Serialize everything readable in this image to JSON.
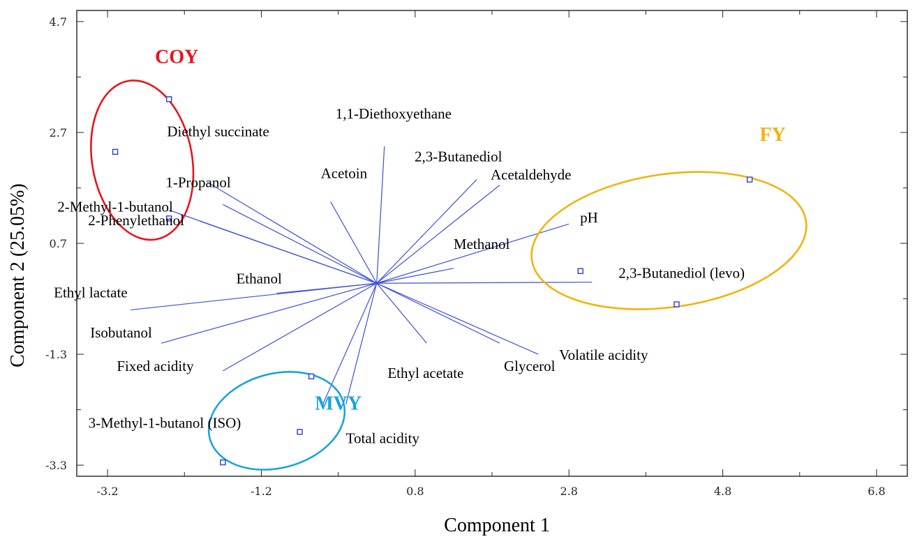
{
  "chart_data": {
    "type": "scatter",
    "subtype": "biplot",
    "xlabel": "Component 1",
    "ylabel": "Component 2 (25.05%)",
    "xlim": [
      -3.6,
      7.2
    ],
    "ylim": [
      -3.5,
      4.9
    ],
    "x_ticks": [
      "-3.2",
      "-1.2",
      "0.8",
      "2.8",
      "4.8",
      "6.8"
    ],
    "y_ticks": [
      "4.7",
      "2.7",
      "0.7",
      "-1.3",
      "-3.3"
    ],
    "grid": false,
    "origin": [
      0.3,
      -0.02
    ],
    "loadings": [
      {
        "name": "1,1-Diethoxyethane",
        "x": 0.4,
        "y": 2.45
      },
      {
        "name": "2,3-Butanediol",
        "x": 1.9,
        "y": 1.75
      },
      {
        "name": "Acetaldehyde",
        "x": 1.6,
        "y": 1.85
      },
      {
        "name": "Acetoin",
        "x": -0.3,
        "y": 1.45
      },
      {
        "name": "pH",
        "x": 2.8,
        "y": 1.05
      },
      {
        "name": "Methanol",
        "x": 1.3,
        "y": 0.25
      },
      {
        "name": "2,3-Butanediol (levo)",
        "x": 3.1,
        "y": 0.0
      },
      {
        "name": "Diethyl succinate",
        "x": -1.9,
        "y": 1.8
      },
      {
        "name": "1-Propanol",
        "x": -1.7,
        "y": 1.4
      },
      {
        "name": "2-Methyl-1-butanol",
        "x": -2.4,
        "y": 1.3
      },
      {
        "name": "2-Phenylethanol",
        "x": -2.0,
        "y": 1.1
      },
      {
        "name": "Ethanol",
        "x": -1.0,
        "y": -0.2
      },
      {
        "name": "Ethyl lactate",
        "x": -2.9,
        "y": -0.5
      },
      {
        "name": "Isobutanol",
        "x": -2.5,
        "y": -1.1
      },
      {
        "name": "Fixed acidity",
        "x": -1.7,
        "y": -1.6
      },
      {
        "name": "3-Methyl-1-butanol (ISO)",
        "x": -0.4,
        "y": -2.2
      },
      {
        "name": "Total acidity",
        "x": -0.1,
        "y": -2.2
      },
      {
        "name": "Ethyl acetate",
        "x": 0.95,
        "y": -1.1
      },
      {
        "name": "Glycerol",
        "x": 1.9,
        "y": -1.1
      },
      {
        "name": "Volatile acidity",
        "x": 2.4,
        "y": -1.3
      }
    ],
    "scores": [
      {
        "x": -2.4,
        "y": 3.3
      },
      {
        "x": -3.1,
        "y": 2.35
      },
      {
        "x": -2.4,
        "y": 1.15
      },
      {
        "x": 2.95,
        "y": 0.2
      },
      {
        "x": 5.15,
        "y": 1.85
      },
      {
        "x": 4.2,
        "y": -0.4
      },
      {
        "x": -0.55,
        "y": -1.7
      },
      {
        "x": -0.7,
        "y": -2.7
      },
      {
        "x": -1.7,
        "y": -3.25
      }
    ],
    "groups": [
      {
        "name": "COY",
        "color": "#e8141b",
        "ellipse": {
          "cx": -2.75,
          "cy": 2.2,
          "rx": 0.65,
          "ry": 1.45,
          "rot": -10
        }
      },
      {
        "name": "FY",
        "color": "#f4b10c",
        "ellipse": {
          "cx": 4.1,
          "cy": 0.75,
          "rx": 1.8,
          "ry": 1.2,
          "rot": -8
        }
      },
      {
        "name": "MVY",
        "color": "#1aa3dd",
        "ellipse": {
          "cx": -1.0,
          "cy": -2.5,
          "rx": 0.9,
          "ry": 0.85,
          "rot": -15
        }
      }
    ]
  }
}
